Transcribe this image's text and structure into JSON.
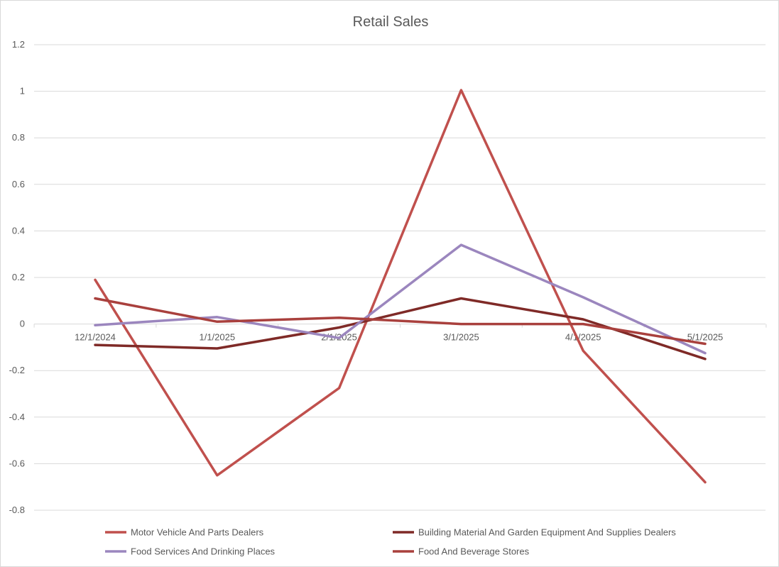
{
  "chart_data": {
    "type": "line",
    "title": "Retail Sales",
    "xlabel": "",
    "ylabel": "",
    "categories": [
      "12/1/2024",
      "1/1/2025",
      "2/1/2025",
      "3/1/2025",
      "4/1/2025",
      "5/1/2025"
    ],
    "ylim": [
      -0.8,
      1.2
    ],
    "yticks": [
      "1.2",
      "1",
      "0.8",
      "0.6",
      "0.4",
      "0.2",
      "0",
      "-0.2",
      "-0.4",
      "-0.6",
      "-0.8"
    ],
    "grid": true,
    "legend_position": "bottom",
    "series": [
      {
        "name": "Motor Vehicle And Parts Dealers",
        "color": "#c0504d",
        "values": [
          0.19,
          -0.65,
          -0.275,
          1.005,
          -0.115,
          -0.68
        ]
      },
      {
        "name": "Building Material And Garden Equipment And Supplies Dealers",
        "color": "#7f2a27",
        "values": [
          -0.09,
          -0.105,
          -0.015,
          0.11,
          0.02,
          -0.15
        ]
      },
      {
        "name": "Food Services And Drinking Places",
        "color": "#9b86be",
        "values": [
          -0.005,
          0.03,
          -0.06,
          0.34,
          0.115,
          -0.125
        ]
      },
      {
        "name": "Food And Beverage Stores",
        "color": "#a9403d",
        "values": [
          0.11,
          0.01,
          0.027,
          0.0,
          0.0,
          -0.085
        ]
      }
    ]
  }
}
